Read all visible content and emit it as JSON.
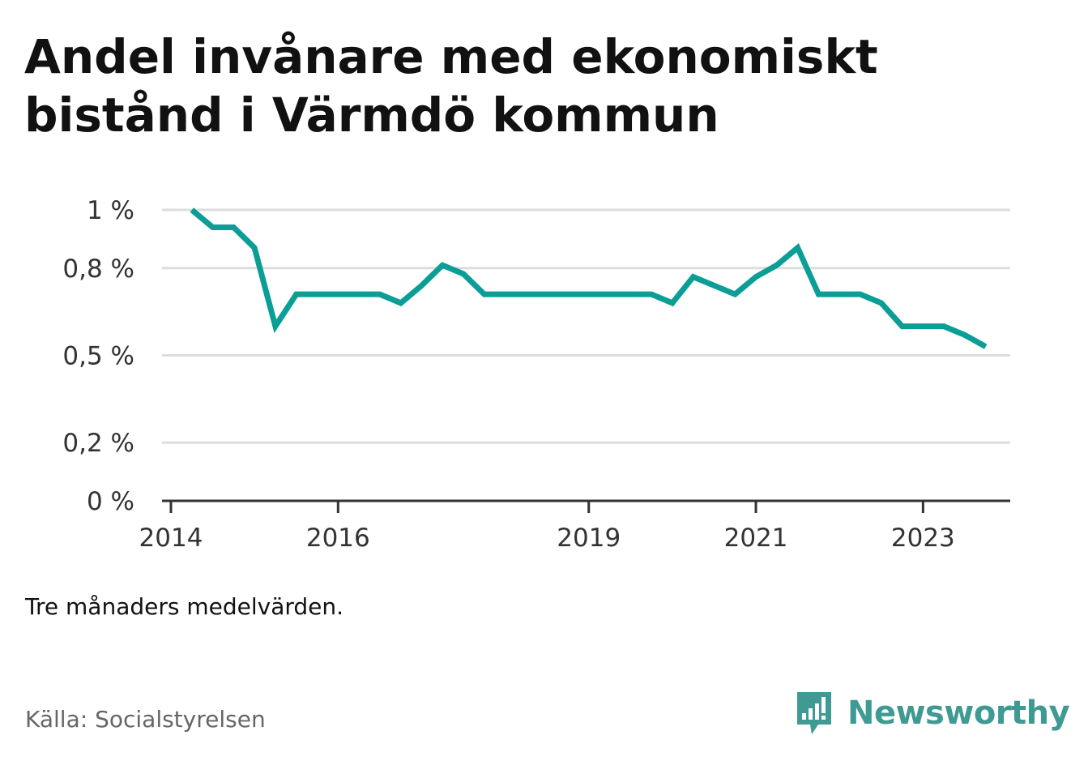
{
  "title": "Andel invånare med ekonomiskt bistånd i Värmdö kommun",
  "note": "Tre månaders medelvärden.",
  "source": "Källa: Socialstyrelsen",
  "brand": {
    "name": "Newsworthy",
    "icon": "newsworthy-logo-icon",
    "color": "#3f9a93"
  },
  "colors": {
    "line": "#0a9e96",
    "grid": "#dddddd",
    "axis": "#333333"
  },
  "chart_data": {
    "type": "line",
    "title": "Andel invånare med ekonomiskt bistånd i Värmdö kommun",
    "xlabel": "",
    "ylabel": "",
    "x_ticks": [
      "2014",
      "2016",
      "2019",
      "2021",
      "2023"
    ],
    "y_ticks": [
      "0 %",
      "0,2 %",
      "0,5 %",
      "0,8 %",
      "1 %"
    ],
    "ylim": [
      0,
      1
    ],
    "xlim": [
      "2014-01",
      "2024-01"
    ],
    "grid": true,
    "legend": "none",
    "series": [
      {
        "values": [
          {
            "x": "2014-04",
            "y": 1.0
          },
          {
            "x": "2014-07",
            "y": 0.94
          },
          {
            "x": "2014-10",
            "y": 0.94
          },
          {
            "x": "2015-01",
            "y": 0.87
          },
          {
            "x": "2015-04",
            "y": 0.6
          },
          {
            "x": "2015-07",
            "y": 0.71
          },
          {
            "x": "2015-10",
            "y": 0.71
          },
          {
            "x": "2016-01",
            "y": 0.71
          },
          {
            "x": "2016-04",
            "y": 0.71
          },
          {
            "x": "2016-07",
            "y": 0.71
          },
          {
            "x": "2016-10",
            "y": 0.68
          },
          {
            "x": "2017-01",
            "y": 0.74
          },
          {
            "x": "2017-04",
            "y": 0.81
          },
          {
            "x": "2017-07",
            "y": 0.78
          },
          {
            "x": "2017-10",
            "y": 0.71
          },
          {
            "x": "2018-01",
            "y": 0.71
          },
          {
            "x": "2018-04",
            "y": 0.71
          },
          {
            "x": "2018-07",
            "y": 0.71
          },
          {
            "x": "2018-10",
            "y": 0.71
          },
          {
            "x": "2019-01",
            "y": 0.71
          },
          {
            "x": "2019-04",
            "y": 0.71
          },
          {
            "x": "2019-07",
            "y": 0.71
          },
          {
            "x": "2019-10",
            "y": 0.71
          },
          {
            "x": "2020-01",
            "y": 0.68
          },
          {
            "x": "2020-04",
            "y": 0.77
          },
          {
            "x": "2020-07",
            "y": 0.74
          },
          {
            "x": "2020-10",
            "y": 0.71
          },
          {
            "x": "2021-01",
            "y": 0.77
          },
          {
            "x": "2021-04",
            "y": 0.81
          },
          {
            "x": "2021-07",
            "y": 0.87
          },
          {
            "x": "2021-10",
            "y": 0.71
          },
          {
            "x": "2022-01",
            "y": 0.71
          },
          {
            "x": "2022-04",
            "y": 0.71
          },
          {
            "x": "2022-07",
            "y": 0.68
          },
          {
            "x": "2022-10",
            "y": 0.6
          },
          {
            "x": "2023-01",
            "y": 0.6
          },
          {
            "x": "2023-04",
            "y": 0.6
          },
          {
            "x": "2023-07",
            "y": 0.57
          },
          {
            "x": "2023-10",
            "y": 0.53
          }
        ]
      }
    ]
  }
}
